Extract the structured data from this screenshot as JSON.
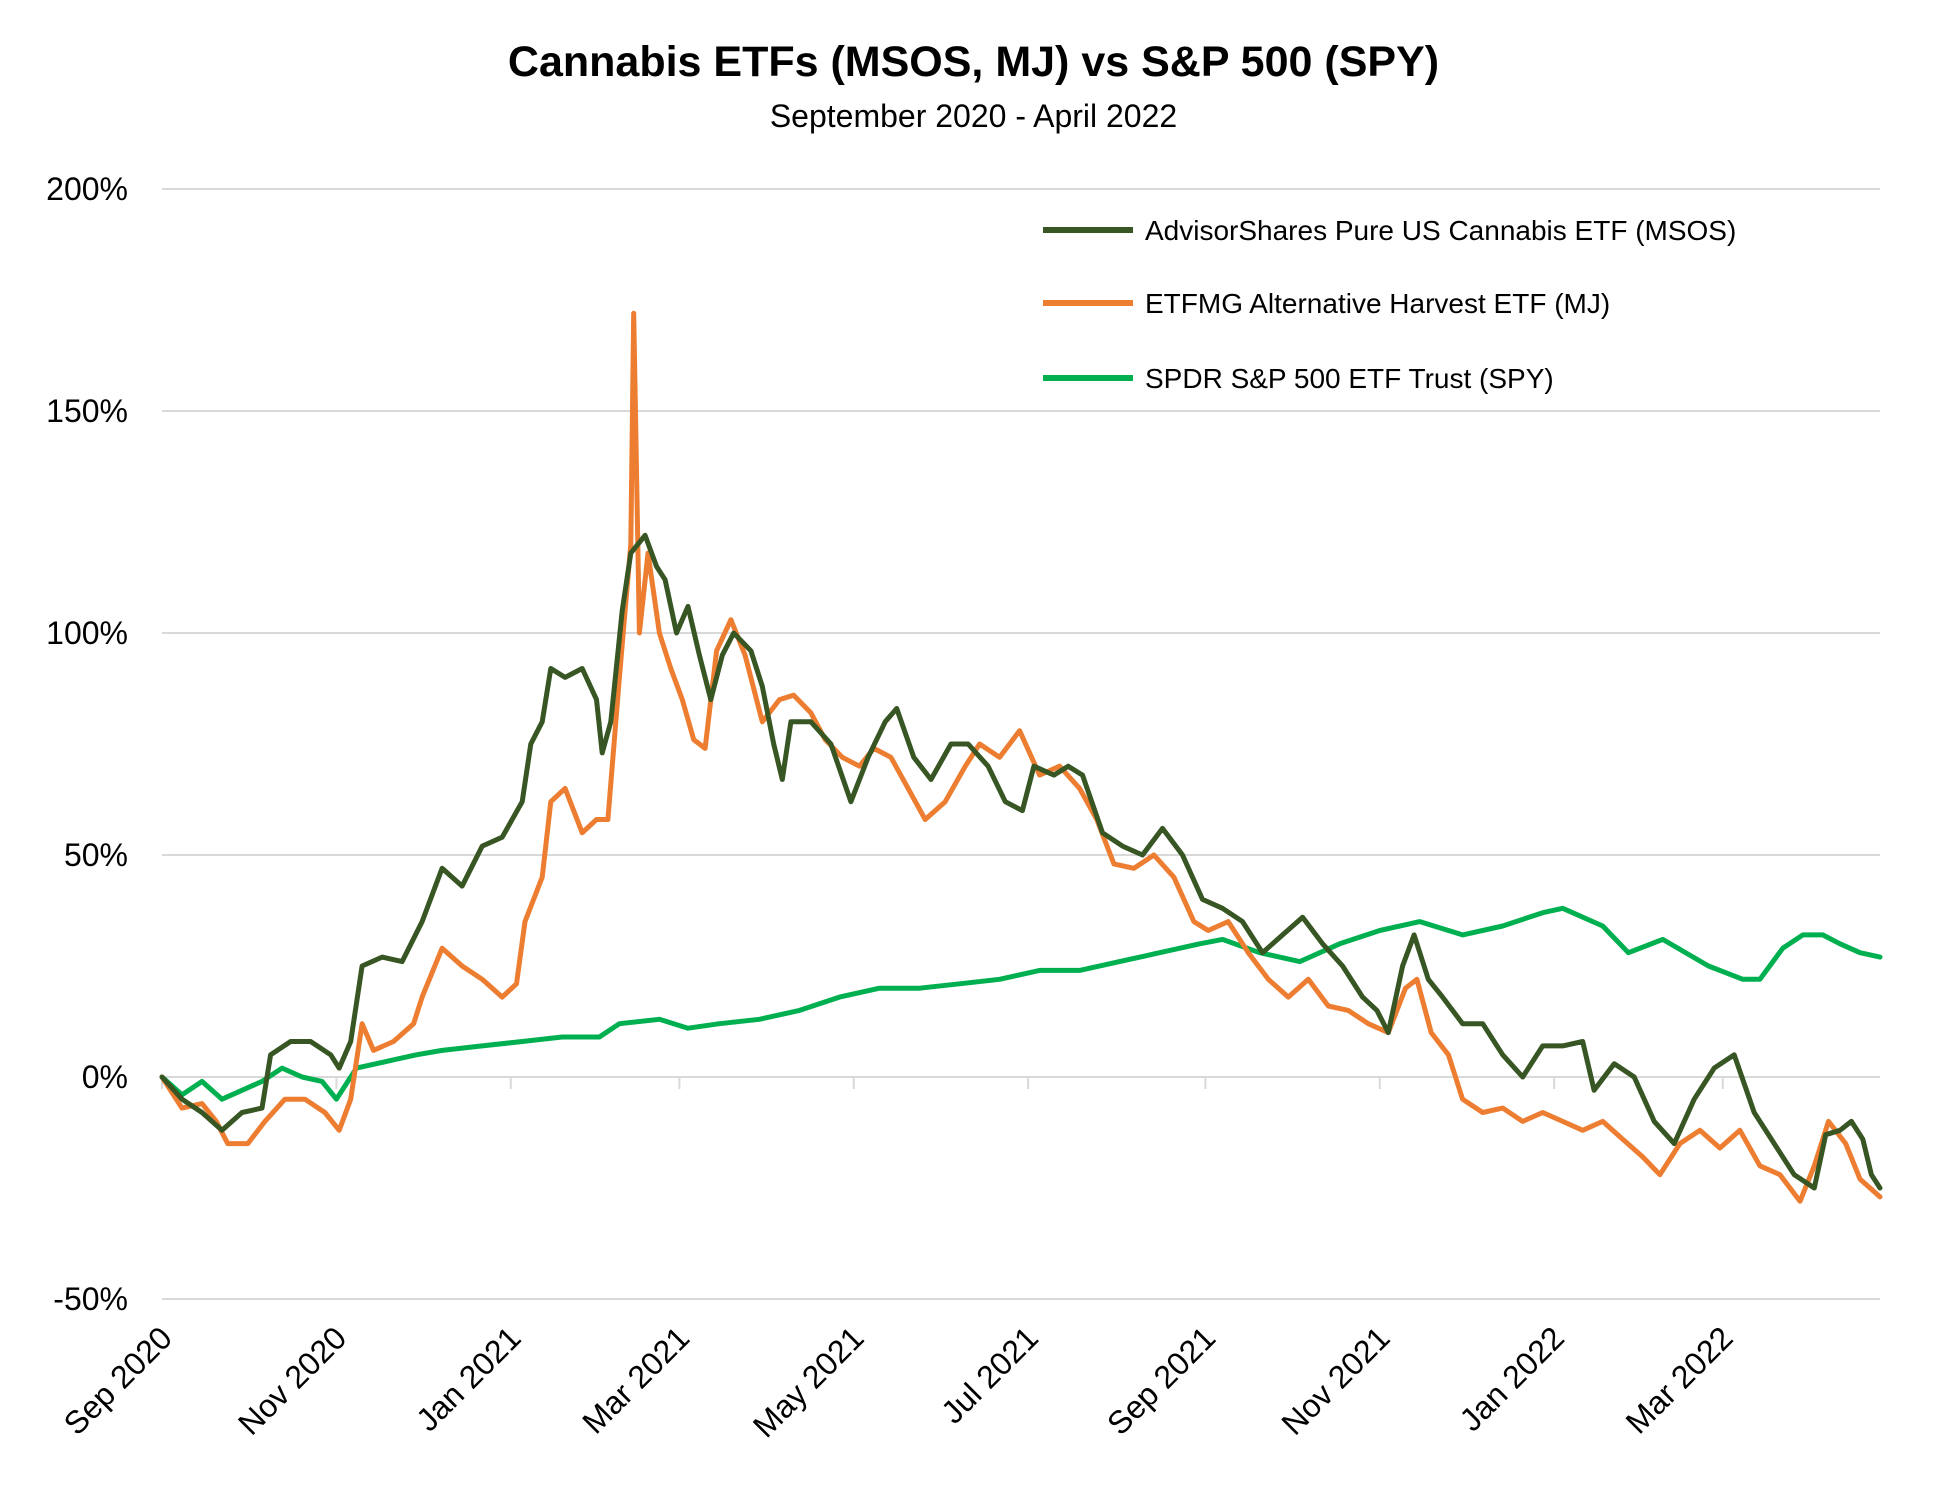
{
  "chart_data": {
    "type": "line",
    "title": "Cannabis ETFs (MSOS, MJ) vs S&P 500 (SPY)",
    "subtitle": "September 2020 - April 2022",
    "xlabel": "",
    "ylabel": "",
    "x_ticks": [
      "Sep 2020",
      "Nov 2020",
      "Jan 2021",
      "Mar 2021",
      "May 2021",
      "Jul 2021",
      "Sep 2021",
      "Nov 2021",
      "Jan 2022",
      "Mar 2022"
    ],
    "y_ticks": [
      200,
      150,
      100,
      50,
      0,
      -50
    ],
    "y_tick_labels": [
      "200%",
      "150%",
      "100%",
      "50%",
      "0%",
      "-50%"
    ],
    "ylim": [
      -50,
      200
    ],
    "xlim": [
      "2020-09-01",
      "2022-04-25"
    ],
    "grid": "horizontal",
    "legend_position": "top-right",
    "series": [
      {
        "name": "AdvisorShares Pure US Cannabis ETF (MSOS)",
        "color": "#375623",
        "points": [
          [
            "2020-09-01",
            0
          ],
          [
            "2020-09-08",
            -5
          ],
          [
            "2020-09-15",
            -8
          ],
          [
            "2020-09-22",
            -12
          ],
          [
            "2020-09-29",
            -8
          ],
          [
            "2020-10-06",
            -7
          ],
          [
            "2020-10-09",
            5
          ],
          [
            "2020-10-16",
            8
          ],
          [
            "2020-10-23",
            8
          ],
          [
            "2020-10-30",
            5
          ],
          [
            "2020-11-02",
            2
          ],
          [
            "2020-11-06",
            8
          ],
          [
            "2020-11-10",
            25
          ],
          [
            "2020-11-17",
            27
          ],
          [
            "2020-11-24",
            26
          ],
          [
            "2020-12-01",
            35
          ],
          [
            "2020-12-08",
            47
          ],
          [
            "2020-12-15",
            43
          ],
          [
            "2020-12-22",
            52
          ],
          [
            "2020-12-29",
            54
          ],
          [
            "2021-01-05",
            62
          ],
          [
            "2021-01-08",
            75
          ],
          [
            "2021-01-12",
            80
          ],
          [
            "2021-01-15",
            92
          ],
          [
            "2021-01-20",
            90
          ],
          [
            "2021-01-26",
            92
          ],
          [
            "2021-01-31",
            85
          ],
          [
            "2021-02-02",
            73
          ],
          [
            "2021-02-05",
            80
          ],
          [
            "2021-02-09",
            105
          ],
          [
            "2021-02-12",
            118
          ],
          [
            "2021-02-17",
            122
          ],
          [
            "2021-02-21",
            115
          ],
          [
            "2021-02-24",
            112
          ],
          [
            "2021-02-28",
            100
          ],
          [
            "2021-03-04",
            106
          ],
          [
            "2021-03-08",
            95
          ],
          [
            "2021-03-12",
            85
          ],
          [
            "2021-03-16",
            95
          ],
          [
            "2021-03-20",
            100
          ],
          [
            "2021-03-26",
            96
          ],
          [
            "2021-03-30",
            88
          ],
          [
            "2021-04-03",
            75
          ],
          [
            "2021-04-06",
            67
          ],
          [
            "2021-04-09",
            80
          ],
          [
            "2021-04-16",
            80
          ],
          [
            "2021-04-23",
            75
          ],
          [
            "2021-04-30",
            62
          ],
          [
            "2021-05-06",
            72
          ],
          [
            "2021-05-12",
            80
          ],
          [
            "2021-05-16",
            83
          ],
          [
            "2021-05-22",
            72
          ],
          [
            "2021-05-28",
            67
          ],
          [
            "2021-06-04",
            75
          ],
          [
            "2021-06-10",
            75
          ],
          [
            "2021-06-17",
            70
          ],
          [
            "2021-06-23",
            62
          ],
          [
            "2021-06-29",
            60
          ],
          [
            "2021-07-03",
            70
          ],
          [
            "2021-07-10",
            68
          ],
          [
            "2021-07-15",
            70
          ],
          [
            "2021-07-20",
            68
          ],
          [
            "2021-07-27",
            55
          ],
          [
            "2021-08-03",
            52
          ],
          [
            "2021-08-10",
            50
          ],
          [
            "2021-08-17",
            56
          ],
          [
            "2021-08-24",
            50
          ],
          [
            "2021-08-31",
            40
          ],
          [
            "2021-09-07",
            38
          ],
          [
            "2021-09-14",
            35
          ],
          [
            "2021-09-21",
            28
          ],
          [
            "2021-09-28",
            32
          ],
          [
            "2021-10-05",
            36
          ],
          [
            "2021-10-12",
            30
          ],
          [
            "2021-10-19",
            25
          ],
          [
            "2021-10-26",
            18
          ],
          [
            "2021-10-31",
            15
          ],
          [
            "2021-11-04",
            10
          ],
          [
            "2021-11-09",
            25
          ],
          [
            "2021-11-13",
            32
          ],
          [
            "2021-11-18",
            22
          ],
          [
            "2021-11-23",
            18
          ],
          [
            "2021-11-30",
            12
          ],
          [
            "2021-12-07",
            12
          ],
          [
            "2021-12-14",
            5
          ],
          [
            "2021-12-21",
            0
          ],
          [
            "2021-12-28",
            7
          ],
          [
            "2022-01-04",
            7
          ],
          [
            "2022-01-11",
            8
          ],
          [
            "2022-01-15",
            -3
          ],
          [
            "2022-01-22",
            3
          ],
          [
            "2022-01-29",
            0
          ],
          [
            "2022-02-05",
            -10
          ],
          [
            "2022-02-12",
            -15
          ],
          [
            "2022-02-19",
            -5
          ],
          [
            "2022-02-26",
            2
          ],
          [
            "2022-03-05",
            5
          ],
          [
            "2022-03-12",
            -8
          ],
          [
            "2022-03-19",
            -15
          ],
          [
            "2022-03-26",
            -22
          ],
          [
            "2022-04-02",
            -25
          ],
          [
            "2022-04-06",
            -13
          ],
          [
            "2022-04-11",
            -12
          ],
          [
            "2022-04-15",
            -10
          ],
          [
            "2022-04-19",
            -14
          ],
          [
            "2022-04-22",
            -22
          ],
          [
            "2022-04-25",
            -25
          ]
        ]
      },
      {
        "name": "ETFMG Alternative Harvest ETF (MJ)",
        "color": "#ED7D31",
        "points": [
          [
            "2020-09-01",
            0
          ],
          [
            "2020-09-08",
            -7
          ],
          [
            "2020-09-15",
            -6
          ],
          [
            "2020-09-20",
            -10
          ],
          [
            "2020-09-24",
            -15
          ],
          [
            "2020-10-01",
            -15
          ],
          [
            "2020-10-07",
            -10
          ],
          [
            "2020-10-14",
            -5
          ],
          [
            "2020-10-21",
            -5
          ],
          [
            "2020-10-28",
            -8
          ],
          [
            "2020-11-02",
            -12
          ],
          [
            "2020-11-06",
            -5
          ],
          [
            "2020-11-10",
            12
          ],
          [
            "2020-11-14",
            6
          ],
          [
            "2020-11-21",
            8
          ],
          [
            "2020-11-28",
            12
          ],
          [
            "2020-12-01",
            18
          ],
          [
            "2020-12-08",
            29
          ],
          [
            "2020-12-15",
            25
          ],
          [
            "2020-12-22",
            22
          ],
          [
            "2020-12-29",
            18
          ],
          [
            "2021-01-03",
            21
          ],
          [
            "2021-01-06",
            35
          ],
          [
            "2021-01-12",
            45
          ],
          [
            "2021-01-15",
            62
          ],
          [
            "2021-01-20",
            65
          ],
          [
            "2021-01-26",
            55
          ],
          [
            "2021-01-31",
            58
          ],
          [
            "2021-02-04",
            58
          ],
          [
            "2021-02-08",
            90
          ],
          [
            "2021-02-12",
            120
          ],
          [
            "2021-02-13",
            172
          ],
          [
            "2021-02-15",
            100
          ],
          [
            "2021-02-18",
            118
          ],
          [
            "2021-02-22",
            100
          ],
          [
            "2021-02-26",
            92
          ],
          [
            "2021-03-02",
            85
          ],
          [
            "2021-03-06",
            76
          ],
          [
            "2021-03-10",
            74
          ],
          [
            "2021-03-14",
            96
          ],
          [
            "2021-03-19",
            103
          ],
          [
            "2021-03-24",
            95
          ],
          [
            "2021-03-30",
            80
          ],
          [
            "2021-04-05",
            85
          ],
          [
            "2021-04-10",
            86
          ],
          [
            "2021-04-16",
            82
          ],
          [
            "2021-04-21",
            76
          ],
          [
            "2021-04-27",
            72
          ],
          [
            "2021-05-03",
            70
          ],
          [
            "2021-05-08",
            74
          ],
          [
            "2021-05-14",
            72
          ],
          [
            "2021-05-20",
            65
          ],
          [
            "2021-05-26",
            58
          ],
          [
            "2021-06-02",
            62
          ],
          [
            "2021-06-09",
            70
          ],
          [
            "2021-06-14",
            75
          ],
          [
            "2021-06-21",
            72
          ],
          [
            "2021-06-28",
            78
          ],
          [
            "2021-07-05",
            68
          ],
          [
            "2021-07-12",
            70
          ],
          [
            "2021-07-19",
            65
          ],
          [
            "2021-07-25",
            58
          ],
          [
            "2021-07-31",
            48
          ],
          [
            "2021-08-07",
            47
          ],
          [
            "2021-08-14",
            50
          ],
          [
            "2021-08-21",
            45
          ],
          [
            "2021-08-28",
            35
          ],
          [
            "2021-09-02",
            33
          ],
          [
            "2021-09-09",
            35
          ],
          [
            "2021-09-16",
            28
          ],
          [
            "2021-09-23",
            22
          ],
          [
            "2021-09-30",
            18
          ],
          [
            "2021-10-07",
            22
          ],
          [
            "2021-10-14",
            16
          ],
          [
            "2021-10-21",
            15
          ],
          [
            "2021-10-28",
            12
          ],
          [
            "2021-11-04",
            10
          ],
          [
            "2021-11-10",
            20
          ],
          [
            "2021-11-14",
            22
          ],
          [
            "2021-11-19",
            10
          ],
          [
            "2021-11-25",
            5
          ],
          [
            "2021-11-30",
            -5
          ],
          [
            "2021-12-07",
            -8
          ],
          [
            "2021-12-14",
            -7
          ],
          [
            "2021-12-21",
            -10
          ],
          [
            "2021-12-28",
            -8
          ],
          [
            "2022-01-04",
            -10
          ],
          [
            "2022-01-11",
            -12
          ],
          [
            "2022-01-18",
            -10
          ],
          [
            "2022-01-25",
            -14
          ],
          [
            "2022-02-01",
            -18
          ],
          [
            "2022-02-07",
            -22
          ],
          [
            "2022-02-14",
            -15
          ],
          [
            "2022-02-21",
            -12
          ],
          [
            "2022-02-28",
            -16
          ],
          [
            "2022-03-07",
            -12
          ],
          [
            "2022-03-14",
            -20
          ],
          [
            "2022-03-21",
            -22
          ],
          [
            "2022-03-28",
            -28
          ],
          [
            "2022-04-02",
            -20
          ],
          [
            "2022-04-07",
            -10
          ],
          [
            "2022-04-13",
            -15
          ],
          [
            "2022-04-18",
            -23
          ],
          [
            "2022-04-25",
            -27
          ]
        ]
      },
      {
        "name": "SPDR S&P 500 ETF Trust (SPY)",
        "color": "#00B050",
        "points": [
          [
            "2020-09-01",
            0
          ],
          [
            "2020-09-08",
            -4
          ],
          [
            "2020-09-15",
            -1
          ],
          [
            "2020-09-22",
            -5
          ],
          [
            "2020-09-29",
            -3
          ],
          [
            "2020-10-06",
            -1
          ],
          [
            "2020-10-13",
            2
          ],
          [
            "2020-10-20",
            0
          ],
          [
            "2020-10-27",
            -1
          ],
          [
            "2020-11-01",
            -5
          ],
          [
            "2020-11-08",
            2
          ],
          [
            "2020-11-15",
            3
          ],
          [
            "2020-11-22",
            4
          ],
          [
            "2020-11-29",
            5
          ],
          [
            "2020-12-08",
            6
          ],
          [
            "2020-12-22",
            7
          ],
          [
            "2021-01-05",
            8
          ],
          [
            "2021-01-19",
            9
          ],
          [
            "2021-02-01",
            9
          ],
          [
            "2021-02-08",
            12
          ],
          [
            "2021-02-22",
            13
          ],
          [
            "2021-03-04",
            11
          ],
          [
            "2021-03-15",
            12
          ],
          [
            "2021-03-29",
            13
          ],
          [
            "2021-04-12",
            15
          ],
          [
            "2021-04-26",
            18
          ],
          [
            "2021-05-10",
            20
          ],
          [
            "2021-05-24",
            20
          ],
          [
            "2021-06-07",
            21
          ],
          [
            "2021-06-21",
            22
          ],
          [
            "2021-07-05",
            24
          ],
          [
            "2021-07-19",
            24
          ],
          [
            "2021-08-02",
            26
          ],
          [
            "2021-08-16",
            28
          ],
          [
            "2021-08-30",
            30
          ],
          [
            "2021-09-07",
            31
          ],
          [
            "2021-09-20",
            28
          ],
          [
            "2021-10-04",
            26
          ],
          [
            "2021-10-18",
            30
          ],
          [
            "2021-11-01",
            33
          ],
          [
            "2021-11-15",
            35
          ],
          [
            "2021-11-30",
            32
          ],
          [
            "2021-12-14",
            34
          ],
          [
            "2021-12-28",
            37
          ],
          [
            "2022-01-04",
            38
          ],
          [
            "2022-01-18",
            34
          ],
          [
            "2022-01-27",
            28
          ],
          [
            "2022-02-08",
            31
          ],
          [
            "2022-02-24",
            25
          ],
          [
            "2022-03-08",
            22
          ],
          [
            "2022-03-14",
            22
          ],
          [
            "2022-03-22",
            29
          ],
          [
            "2022-03-29",
            32
          ],
          [
            "2022-04-05",
            32
          ],
          [
            "2022-04-11",
            30
          ],
          [
            "2022-04-18",
            28
          ],
          [
            "2022-04-25",
            27
          ]
        ]
      }
    ]
  }
}
